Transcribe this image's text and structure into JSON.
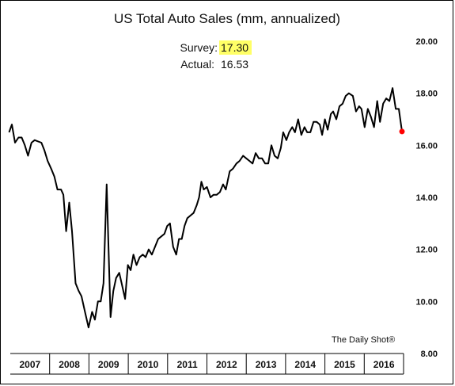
{
  "chart_data": {
    "type": "line",
    "title": "US Total Auto Sales (mm, annualized)",
    "annotations": {
      "survey_label": "Survey:",
      "survey_value": "17.30",
      "actual_label": "Actual:",
      "actual_value": "16.53"
    },
    "credit": "The Daily Shot®",
    "y_ticks": [
      "20.00",
      "18.00",
      "16.00",
      "14.00",
      "12.00",
      "10.00",
      "8.00"
    ],
    "ylim": [
      8,
      20
    ],
    "y_axis_side": "right",
    "x_tick_labels": [
      "2007",
      "2008",
      "2009",
      "2010",
      "2011",
      "2012",
      "2013",
      "2014",
      "2015",
      "2016"
    ],
    "xlim": [
      2007,
      2017
    ],
    "grid": false,
    "legend": "none",
    "line_color": "#000000",
    "marker_color": "#ff0000",
    "highlight_color": "#ffff66",
    "series": [
      {
        "points": [
          [
            2006.97,
            16.5
          ],
          [
            2007.04,
            16.8
          ],
          [
            2007.12,
            16.1
          ],
          [
            2007.21,
            16.3
          ],
          [
            2007.29,
            16.3
          ],
          [
            2007.37,
            16.0
          ],
          [
            2007.45,
            15.6
          ],
          [
            2007.54,
            16.1
          ],
          [
            2007.62,
            16.2
          ],
          [
            2007.79,
            16.1
          ],
          [
            2007.87,
            15.8
          ],
          [
            2007.95,
            15.4
          ],
          [
            2008.04,
            15.1
          ],
          [
            2008.12,
            14.8
          ],
          [
            2008.2,
            14.3
          ],
          [
            2008.29,
            14.3
          ],
          [
            2008.35,
            14.1
          ],
          [
            2008.42,
            12.7
          ],
          [
            2008.5,
            13.8
          ],
          [
            2008.57,
            12.7
          ],
          [
            2008.66,
            10.7
          ],
          [
            2008.74,
            10.4
          ],
          [
            2008.81,
            10.2
          ],
          [
            2008.9,
            9.6
          ],
          [
            2008.99,
            9.0
          ],
          [
            2009.08,
            9.6
          ],
          [
            2009.15,
            9.3
          ],
          [
            2009.23,
            10.0
          ],
          [
            2009.3,
            10.0
          ],
          [
            2009.37,
            10.7
          ],
          [
            2009.45,
            14.5
          ],
          [
            2009.55,
            9.4
          ],
          [
            2009.62,
            10.4
          ],
          [
            2009.69,
            10.9
          ],
          [
            2009.77,
            11.1
          ],
          [
            2009.83,
            10.7
          ],
          [
            2009.92,
            10.1
          ],
          [
            2009.99,
            11.4
          ],
          [
            2010.06,
            11.2
          ],
          [
            2010.13,
            11.8
          ],
          [
            2010.21,
            11.4
          ],
          [
            2010.29,
            11.7
          ],
          [
            2010.37,
            11.8
          ],
          [
            2010.44,
            11.7
          ],
          [
            2010.52,
            12.0
          ],
          [
            2010.6,
            11.8
          ],
          [
            2010.68,
            12.1
          ],
          [
            2010.76,
            12.4
          ],
          [
            2010.84,
            12.5
          ],
          [
            2010.92,
            12.6
          ],
          [
            2010.99,
            12.9
          ],
          [
            2011.06,
            13.0
          ],
          [
            2011.14,
            12.1
          ],
          [
            2011.22,
            11.8
          ],
          [
            2011.29,
            12.4
          ],
          [
            2011.36,
            12.4
          ],
          [
            2011.43,
            12.9
          ],
          [
            2011.5,
            13.2
          ],
          [
            2011.58,
            13.3
          ],
          [
            2011.66,
            13.4
          ],
          [
            2011.74,
            13.7
          ],
          [
            2011.8,
            14.0
          ],
          [
            2011.86,
            14.6
          ],
          [
            2011.92,
            14.3
          ],
          [
            2012.0,
            14.4
          ],
          [
            2012.09,
            14.0
          ],
          [
            2012.17,
            14.1
          ],
          [
            2012.25,
            14.1
          ],
          [
            2012.33,
            14.2
          ],
          [
            2012.41,
            14.5
          ],
          [
            2012.48,
            14.3
          ],
          [
            2012.58,
            15.0
          ],
          [
            2012.66,
            15.1
          ],
          [
            2012.75,
            15.3
          ],
          [
            2012.83,
            15.4
          ],
          [
            2012.92,
            15.6
          ],
          [
            2013.0,
            15.5
          ],
          [
            2013.08,
            15.4
          ],
          [
            2013.16,
            15.3
          ],
          [
            2013.24,
            15.7
          ],
          [
            2013.32,
            15.5
          ],
          [
            2013.4,
            15.5
          ],
          [
            2013.48,
            15.3
          ],
          [
            2013.56,
            15.3
          ],
          [
            2013.64,
            16.0
          ],
          [
            2013.72,
            15.6
          ],
          [
            2013.8,
            15.5
          ],
          [
            2013.88,
            15.9
          ],
          [
            2013.94,
            16.5
          ],
          [
            2014.02,
            16.2
          ],
          [
            2014.09,
            16.5
          ],
          [
            2014.17,
            16.7
          ],
          [
            2014.24,
            16.5
          ],
          [
            2014.32,
            17.0
          ],
          [
            2014.4,
            16.4
          ],
          [
            2014.48,
            16.7
          ],
          [
            2014.55,
            16.5
          ],
          [
            2014.63,
            16.5
          ],
          [
            2014.71,
            16.9
          ],
          [
            2014.79,
            16.9
          ],
          [
            2014.87,
            16.8
          ],
          [
            2014.93,
            16.4
          ],
          [
            2015.0,
            17.0
          ],
          [
            2015.07,
            16.6
          ],
          [
            2015.15,
            17.2
          ],
          [
            2015.21,
            17.3
          ],
          [
            2015.29,
            17.0
          ],
          [
            2015.37,
            17.5
          ],
          [
            2015.45,
            17.6
          ],
          [
            2015.53,
            17.9
          ],
          [
            2015.61,
            18.0
          ],
          [
            2015.71,
            17.9
          ],
          [
            2015.79,
            17.3
          ],
          [
            2015.87,
            17.5
          ],
          [
            2015.93,
            17.4
          ],
          [
            2016.01,
            16.7
          ],
          [
            2016.09,
            17.4
          ],
          [
            2016.17,
            17.1
          ],
          [
            2016.25,
            16.7
          ],
          [
            2016.33,
            17.7
          ],
          [
            2016.4,
            16.9
          ],
          [
            2016.48,
            17.6
          ],
          [
            2016.56,
            17.8
          ],
          [
            2016.64,
            17.7
          ],
          [
            2016.72,
            18.2
          ],
          [
            2016.8,
            17.4
          ],
          [
            2016.88,
            17.4
          ],
          [
            2016.96,
            16.53
          ]
        ]
      }
    ]
  }
}
